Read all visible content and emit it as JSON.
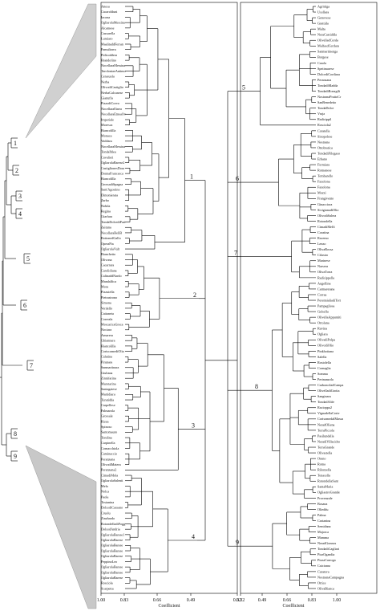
{
  "overview": {
    "cluster_numbers": [
      "1",
      "2",
      "3",
      "4",
      "5",
      "6",
      "7",
      "8",
      "9"
    ]
  },
  "left_panel": {
    "xlabel": "Coefficient",
    "ticks": [
      "1.00",
      "0.83",
      "0.66",
      "0.49",
      "0.32"
    ],
    "clusters": [
      "1",
      "2",
      "3",
      "4"
    ],
    "labels": [
      "Attesa",
      "Cacarolduni",
      "Iacona",
      "OgliarolaMessina",
      "Alcamese",
      "Cassarella",
      "Lumiaro",
      "MaalitaddFerran",
      "Pamuliorra",
      "Pidicoddera",
      "Brandofino",
      "NocellaraMessina",
      "TaroloniaeAntimo",
      "Cerasuola",
      "Nerba",
      "OlivodiCastiglio",
      "NerbaCalcanese",
      "Gianuffa",
      "PizzodiCorvo",
      "NocellaraEtnea",
      "NocellaraEtneaOv",
      "Imperiale",
      "Moresca",
      "Biancolilla",
      "Monaca",
      "Vaddara",
      "NocellaraMessina",
      "TondaIblea",
      "Cavalieri",
      "OgliarolaBarese2",
      "CastiglionesDora",
      "DonnaFrancesca",
      "Biancolilla",
      "GrossadiSpagna",
      "Sant'Agostino",
      "Dimonierata",
      "Zarbo",
      "Nobila",
      "Regina",
      "Giarfara",
      "TondaDolcediPart",
      "Zaituna",
      "NocellaraBeliB",
      "BottonedGallo",
      "OperaPia",
      "OgliarolaVult",
      "Bianchetto",
      "Olivona",
      "Cacarrara",
      "Carolidiana",
      "CalinaddNardo",
      "Mandalfica",
      "Mora",
      "Pizzutella",
      "Pietrastrono",
      "Simona",
      "Verdello",
      "Cattaneta",
      "Correala",
      "MoscaricaGreca",
      "Nociara",
      "Arnarera",
      "Ghiannara",
      "Biancolilla",
      "CoriscomediOlio",
      "Calatina",
      "Pirunara",
      "Sanmartinara",
      "Giuliana",
      "Zinnifarina",
      "Marotarina",
      "Santagatese",
      "Martidiara",
      "Turatidda",
      "Carpellese",
      "Palmarola",
      "Grossale",
      "Rizza",
      "Spinoso",
      "Santomauro",
      "Tondina",
      "Carpinella",
      "Cornacchiola",
      "Caminaccio",
      "Peranzana",
      "OlivodiMatera",
      "Peranzana2",
      "CimadiMola",
      "OgliarolaSalenti",
      "Mela",
      "Nolca",
      "Paola",
      "Tostanina",
      "DolcediCassano",
      "Cruolu",
      "Zinzhardo",
      "RotondelladiFogg",
      "DolcedAndria",
      "OgliarolaBarese1",
      "OgliarolaBarese",
      "OgliarolaBarese",
      "OgliarolaBarese",
      "OgliarolaBarese",
      "PeppinoLeo",
      "OgliarolaBarese",
      "OgliarolaBarese",
      "OgliarolaBarese",
      "Rosciola",
      "Scarpetta"
    ]
  },
  "right_panel": {
    "xlabel": "Coefficient",
    "ticks": [
      "0.32",
      "0.49",
      "0.66",
      "0.83",
      "1.00"
    ],
    "clusters": [
      "5",
      "6",
      "7",
      "8",
      "9"
    ],
    "labels": [
      "Agrittiga",
      "Ucellara",
      "Genovese",
      "Grattida",
      "Malta",
      "NeraCastiddla",
      "OlivelladCorda",
      "MalfasdCerdara",
      "Sanmartinenga",
      "Borgese",
      "Carola",
      "Spetimarese",
      "DolcediCordiara",
      "Peranzana",
      "TondadiMadda",
      "TondadiRonzgili",
      "NostranaPrattoCr",
      "SanBenedetto",
      "TondaDolce",
      "Vraja",
      "Radicippil",
      "Rosciola2",
      "Coratella",
      "Sinopolese",
      "Nostrana",
      "Ottobratica",
      "TondadiFilogaso",
      "Erbano",
      "Fermiara",
      "Romanese",
      "Tombarello",
      "Faxolona",
      "Faxolona",
      "Mozzi",
      "Frangivento",
      "Ginacciora",
      "SivigianadiOlio",
      "OlivodiSalera",
      "Rotondella",
      "CimadiMelfi",
      "Coratina",
      "Racemo",
      "Lenzo",
      "OlivaRossa",
      "Cilastro",
      "Marinese",
      "Narsera",
      "OlivaTorra",
      "Radicippella",
      "Augellina",
      "Carmaretana",
      "Corraa",
      "PerennialiadiTort",
      "Pampagliosa",
      "Gelsella",
      "OlivellaAppuntiti",
      "Ortolana",
      "Ruvina",
      "Ogliara",
      "OlivadiPolpa",
      "OlivodiOlio",
      "Pinkhottana",
      "Salella",
      "Rosiolella",
      "Cornaglia",
      "Somma",
      "Pertnanzola",
      "CarbonciladCampa",
      "OlivelladiGrotta",
      "Sanginara",
      "TondadAlife",
      "Racioppa2",
      "VignadellaCorte",
      "CorisomedalMassa",
      "NeradOliena",
      "TerraPiccola",
      "Pasilundella",
      "NeradiVillacidro",
      "TerraGrande",
      "Olivastella",
      "Orano",
      "Roma",
      "Rilonzella",
      "Tenacella",
      "RotondellaSant",
      "SantaMaria",
      "OgliastroGrande",
      "Provenzale",
      "Bosana",
      "Olieddu",
      "Palma",
      "Cartanina",
      "Semidana",
      "Majorca",
      "Mamma",
      "NeradGonnos",
      "TondadiCagliari",
      "PizzOgandia",
      "PizzaCarroga",
      "Caicirana",
      "Curatora",
      "NostranaCampagna",
      "Ortice",
      "OlivaBianca"
    ]
  }
}
